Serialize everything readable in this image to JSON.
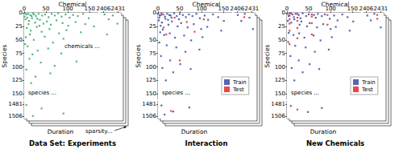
{
  "chart_data": [
    {
      "type": "scatter",
      "title": "Data Set: Experiments",
      "x_label": "Chemical",
      "y_label": "Species",
      "depth_label": "Duration",
      "xlim": [
        0,
        2436
      ],
      "x_break": [
        170,
        2400
      ],
      "xticks": [
        0,
        50,
        100,
        150,
        2406,
        2431
      ],
      "ylim": [
        0,
        1510
      ],
      "y_break": [
        160,
        1475
      ],
      "yticks": [
        0,
        25,
        50,
        75,
        100,
        125,
        150,
        1481,
        1506
      ],
      "marker": "square",
      "annotations": {
        "chemicals": "chemicals ...",
        "species": "species ...",
        "sparsity": "sparsity..."
      },
      "series": [
        {
          "color": "#2ca25f",
          "points": [
            [
              2,
              1
            ],
            [
              5,
              3
            ],
            [
              9,
              2
            ],
            [
              14,
              4
            ],
            [
              20,
              1
            ],
            [
              27,
              6
            ],
            [
              33,
              2
            ],
            [
              41,
              5
            ],
            [
              48,
              3
            ],
            [
              56,
              8
            ],
            [
              63,
              2
            ],
            [
              70,
              5
            ],
            [
              78,
              1
            ],
            [
              86,
              7
            ],
            [
              95,
              3
            ],
            [
              104,
              9
            ],
            [
              112,
              4
            ],
            [
              123,
              6
            ],
            [
              135,
              2
            ],
            [
              148,
              10
            ],
            [
              3,
              12
            ],
            [
              11,
              15
            ],
            [
              18,
              10
            ],
            [
              25,
              18
            ],
            [
              36,
              13
            ],
            [
              44,
              20
            ],
            [
              52,
              16
            ],
            [
              61,
              22
            ],
            [
              74,
              14
            ],
            [
              88,
              19
            ],
            [
              101,
              24
            ],
            [
              118,
              17
            ],
            [
              140,
              21
            ],
            [
              160,
              25
            ],
            [
              6,
              28
            ],
            [
              15,
              33
            ],
            [
              29,
              26
            ],
            [
              40,
              35
            ],
            [
              58,
              30
            ],
            [
              80,
              38
            ],
            [
              97,
              32
            ],
            [
              130,
              36
            ],
            [
              4,
              45
            ],
            [
              22,
              50
            ],
            [
              47,
              44
            ],
            [
              66,
              55
            ],
            [
              90,
              48
            ],
            [
              8,
              62
            ],
            [
              31,
              70
            ],
            [
              55,
              66
            ],
            [
              85,
              75
            ],
            [
              12,
              85
            ],
            [
              38,
              92
            ],
            [
              70,
              98
            ],
            [
              120,
              90
            ],
            [
              5,
              105
            ],
            [
              26,
              118
            ],
            [
              60,
              112
            ],
            [
              16,
              130
            ],
            [
              1,
              7
            ],
            [
              7,
              9
            ],
            [
              10,
              21
            ],
            [
              17,
              6
            ],
            [
              23,
              3
            ],
            [
              30,
              11
            ],
            [
              35,
              24
            ],
            [
              13,
              40
            ],
            [
              2,
              58
            ],
            [
              19,
              77
            ],
            [
              2408,
              3
            ],
            [
              2415,
              12
            ],
            [
              2422,
              5
            ],
            [
              2430,
              20
            ],
            [
              2412,
              40
            ],
            [
              5,
              1483
            ],
            [
              40,
              1490
            ],
            [
              90,
              1500
            ],
            [
              20,
              1505
            ]
          ]
        }
      ]
    },
    {
      "type": "scatter",
      "title": "Interaction",
      "x_label": "Chemical",
      "y_label": "Species",
      "depth_label": "Duration",
      "xlim": [
        0,
        2436
      ],
      "x_break": [
        170,
        2400
      ],
      "xticks": [
        0,
        50,
        100,
        150,
        2406,
        2431
      ],
      "ylim": [
        0,
        1510
      ],
      "y_break": [
        160,
        1475
      ],
      "yticks": [
        0,
        25,
        50,
        75,
        100,
        125,
        150,
        1481,
        1506
      ],
      "marker": "square",
      "legend": "lower right",
      "annotations": {
        "species": "species ..."
      },
      "series": [
        {
          "name": "Train",
          "color": "#3040a0",
          "points": [
            [
              1,
              2
            ],
            [
              4,
              5
            ],
            [
              8,
              1
            ],
            [
              12,
              3
            ],
            [
              16,
              7
            ],
            [
              21,
              2
            ],
            [
              26,
              4
            ],
            [
              31,
              9
            ],
            [
              37,
              1
            ],
            [
              43,
              6
            ],
            [
              50,
              2
            ],
            [
              57,
              4
            ],
            [
              64,
              8
            ],
            [
              71,
              3
            ],
            [
              79,
              6
            ],
            [
              88,
              2
            ],
            [
              96,
              10
            ],
            [
              107,
              5
            ],
            [
              115,
              13
            ],
            [
              126,
              3
            ],
            [
              138,
              8
            ],
            [
              151,
              15
            ],
            [
              2,
              14
            ],
            [
              9,
              18
            ],
            [
              17,
              11
            ],
            [
              24,
              22
            ],
            [
              32,
              16
            ],
            [
              45,
              25
            ],
            [
              53,
              19
            ],
            [
              68,
              27
            ],
            [
              82,
              21
            ],
            [
              99,
              30
            ],
            [
              113,
              26
            ],
            [
              145,
              33
            ],
            [
              5,
              36
            ],
            [
              14,
              41
            ],
            [
              27,
              38
            ],
            [
              39,
              46
            ],
            [
              60,
              42
            ],
            [
              76,
              51
            ],
            [
              102,
              45
            ],
            [
              3,
              55
            ],
            [
              20,
              60
            ],
            [
              42,
              64
            ],
            [
              63,
              72
            ],
            [
              95,
              68
            ],
            [
              7,
              80
            ],
            [
              28,
              88
            ],
            [
              51,
              95
            ],
            [
              10,
              102
            ],
            [
              35,
              110
            ],
            [
              75,
              104
            ],
            [
              18,
              125
            ],
            [
              3,
              9
            ],
            [
              6,
              24
            ],
            [
              11,
              31
            ],
            [
              23,
              13
            ],
            [
              29,
              5
            ],
            [
              48,
              12
            ],
            [
              2407,
              4
            ],
            [
              2413,
              15
            ],
            [
              2419,
              2
            ],
            [
              2427,
              9
            ],
            [
              2433,
              30
            ],
            [
              8,
              1484
            ],
            [
              35,
              1496
            ],
            [
              72,
              1488
            ],
            [
              15,
              1502
            ]
          ]
        },
        {
          "name": "Test",
          "color": "#e41a1c",
          "points": [
            [
              7,
              4
            ],
            [
              38,
              9
            ],
            [
              66,
              17
            ],
            [
              19,
              40
            ],
            [
              105,
              12
            ],
            [
              50,
              88
            ],
            [
              13,
              27
            ],
            [
              84,
              35
            ],
            [
              2418,
              8
            ],
            [
              30,
              1495
            ]
          ]
        }
      ]
    },
    {
      "type": "scatter",
      "title": "New Chemicals",
      "x_label": "Chemical",
      "y_label": "Species",
      "depth_label": "Duration",
      "xlim": [
        0,
        2436
      ],
      "x_break": [
        170,
        2400
      ],
      "xticks": [
        0,
        50,
        100,
        150,
        2406,
        2431
      ],
      "ylim": [
        0,
        1510
      ],
      "y_break": [
        160,
        1475
      ],
      "yticks": [
        0,
        25,
        50,
        75,
        100,
        125,
        150,
        1481,
        1506
      ],
      "marker": "square",
      "legend": "lower right",
      "annotations": {
        "species": "species ..."
      },
      "series": [
        {
          "name": "Train",
          "color": "#3040a0",
          "points": [
            [
              1,
              2
            ],
            [
              4,
              6
            ],
            [
              9,
              1
            ],
            [
              13,
              3
            ],
            [
              16,
              8
            ],
            [
              20,
              2
            ],
            [
              27,
              4
            ],
            [
              31,
              10
            ],
            [
              36,
              1
            ],
            [
              44,
              6
            ],
            [
              50,
              3
            ],
            [
              62,
              4
            ],
            [
              66,
              9
            ],
            [
              71,
              2
            ],
            [
              80,
              6
            ],
            [
              87,
              3
            ],
            [
              98,
              11
            ],
            [
              108,
              5
            ],
            [
              116,
              14
            ],
            [
              127,
              3
            ],
            [
              139,
              8
            ],
            [
              152,
              16
            ],
            [
              2,
              15
            ],
            [
              10,
              18
            ],
            [
              17,
              12
            ],
            [
              29,
              22
            ],
            [
              33,
              16
            ],
            [
              46,
              25
            ],
            [
              52,
              19
            ],
            [
              69,
              27
            ],
            [
              83,
              21
            ],
            [
              100,
              30
            ],
            [
              112,
              26
            ],
            [
              144,
              33
            ],
            [
              4,
              37
            ],
            [
              15,
              41
            ],
            [
              28,
              38
            ],
            [
              40,
              46
            ],
            [
              61,
              42
            ],
            [
              77,
              51
            ],
            [
              103,
              45
            ],
            [
              3,
              54
            ],
            [
              19,
              61
            ],
            [
              43,
              64
            ],
            [
              64,
              72
            ],
            [
              96,
              68
            ],
            [
              8,
              80
            ],
            [
              27,
              88
            ],
            [
              52,
              95
            ],
            [
              11,
              102
            ],
            [
              36,
              110
            ],
            [
              74,
              104
            ],
            [
              17,
              125
            ],
            [
              2408,
              5
            ],
            [
              2414,
              14
            ],
            [
              2420,
              2
            ],
            [
              2431,
              27
            ],
            [
              9,
              1485
            ],
            [
              48,
              1497
            ],
            [
              80,
              1489
            ]
          ]
        },
        {
          "name": "Test",
          "color": "#e41a1c",
          "points": [
            [
              6,
              1
            ],
            [
              6,
              5
            ],
            [
              6,
              12
            ],
            [
              6,
              20
            ],
            [
              6,
              33
            ],
            [
              6,
              58
            ],
            [
              24,
              2
            ],
            [
              24,
              9
            ],
            [
              24,
              15
            ],
            [
              24,
              28
            ],
            [
              24,
              47
            ],
            [
              57,
              3
            ],
            [
              57,
              7
            ],
            [
              57,
              19
            ],
            [
              57,
              40
            ],
            [
              93,
              4
            ],
            [
              93,
              22
            ],
            [
              2425,
              4
            ],
            [
              2425,
              11
            ],
            [
              24,
              1492
            ]
          ]
        }
      ]
    }
  ]
}
